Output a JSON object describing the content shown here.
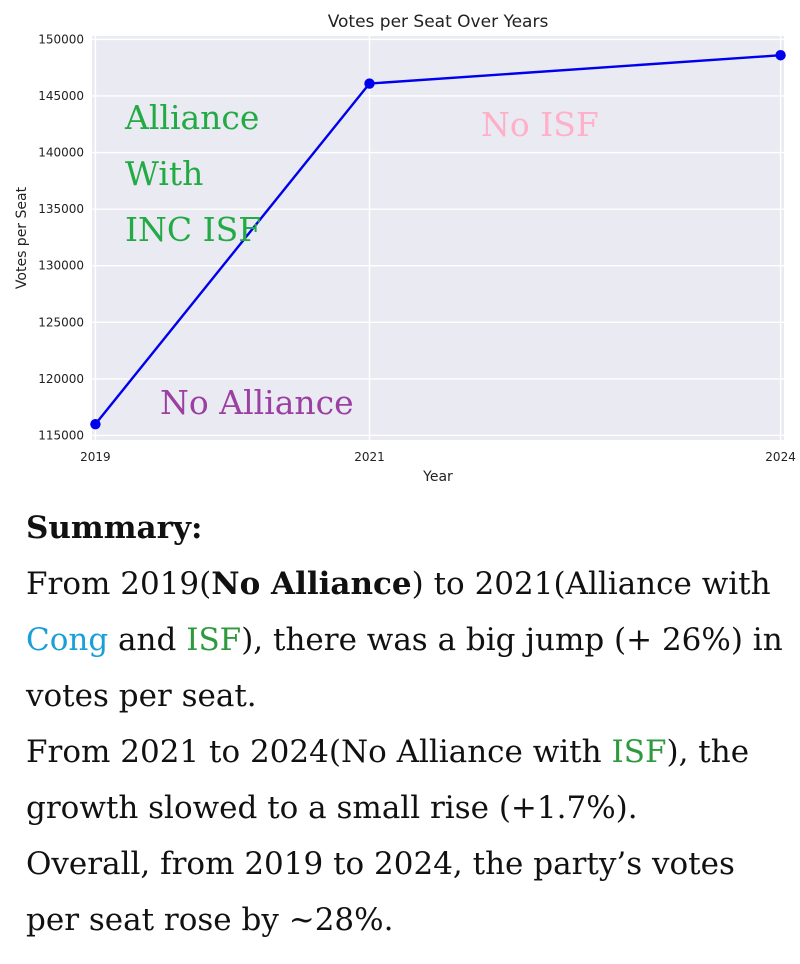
{
  "chart_data": {
    "type": "line",
    "title": "Votes per Seat Over Years",
    "xlabel": "Year",
    "ylabel": "Votes per Seat",
    "x": [
      "2019",
      "2021",
      "2024"
    ],
    "xlim": [
      2018.975,
      2024.025
    ],
    "ylim": [
      114600,
      150300
    ],
    "yticks": [
      "115000",
      "120000",
      "125000",
      "130000",
      "135000",
      "140000",
      "145000",
      "150000"
    ],
    "grid": true,
    "series": [
      {
        "x": [
          2019,
          2021,
          2024
        ],
        "values": [
          116000,
          146100,
          148600
        ],
        "color": "#0000ee"
      }
    ],
    "annotations": {
      "alliance_line1": "Alliance",
      "alliance_line2": "With",
      "alliance_line3": "INC ISF",
      "no_isf": "No ISF",
      "no_alliance": "No Alliance"
    },
    "colors": {
      "plot_bg": "#eaeaf2",
      "alliance": "#22aa44",
      "no_isf": "#ffb0c8",
      "no_alliance": "#9b3fa3"
    }
  },
  "summary": {
    "title": "Summary:",
    "p1_a": "From 2019(",
    "p1_b": "No Alliance",
    "p1_c": ") to 2021(Alliance with ",
    "p1_d": "Cong",
    "p1_e": " and ",
    "p1_f": "ISF",
    "p1_g": "), there was a big jump (+ 26%) in votes per seat.",
    "p2_a": "From 2021 to 2024(No Alliance with ",
    "p2_b": "ISF",
    "p2_c": "), the growth slowed to a small rise (+1.7%).",
    "p3": "Overall, from 2019 to 2024, the party’s votes per seat rose by ~28%."
  }
}
